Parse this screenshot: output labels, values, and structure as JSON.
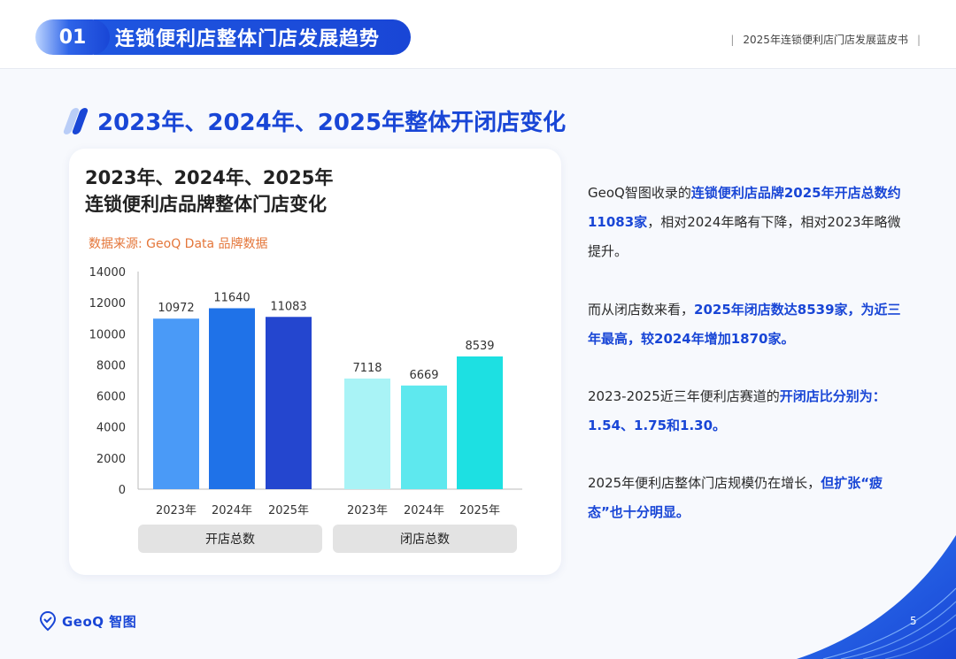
{
  "header": {
    "section_number": "01",
    "section_title": "连锁便利店整体门店发展趋势",
    "report_name": "2025年连锁便利店门店发展蓝皮书",
    "pipe": "|"
  },
  "heading": "2023年、2024年、2025年整体开闭店变化",
  "chart": {
    "title_line1": "2023年、2024年、2025年",
    "title_line2": "连锁便利店品牌整体门店变化",
    "source": "数据来源: GeoQ Data 品牌数据",
    "groups": [
      "开店总数",
      "闭店总数"
    ]
  },
  "chart_data": {
    "type": "bar",
    "categories": [
      "2023年",
      "2024年",
      "2025年",
      "2023年",
      "2024年",
      "2025年"
    ],
    "groups": [
      "开店总数",
      "闭店总数"
    ],
    "values": [
      10972,
      11640,
      11083,
      7118,
      6669,
      8539
    ],
    "colors": [
      "#4a9af7",
      "#1f72e8",
      "#2446cf",
      "#a9f3f6",
      "#5ee8ee",
      "#1de0e2"
    ],
    "ylim": [
      0,
      14000
    ],
    "yticks": [
      0,
      2000,
      4000,
      6000,
      8000,
      10000,
      12000,
      14000
    ],
    "grid": false
  },
  "paragraphs": {
    "p1_a": "GeoQ智图收录的",
    "p1_b": "连锁便利店品牌2025年开店总数约11083家",
    "p1_c": "，相对2024年略有下降，相对2023年略微提升。",
    "p2_a": "而从闭店数来看，",
    "p2_b": "2025年闭店数达8539家，为近三年最高，较2024年增加1870家。",
    "p3_a": "2023-2025近三年便利店赛道的",
    "p3_b": "开闭店比分别为：1.54、1.75和1.30。",
    "p4_a": "2025年便利店整体门店规模仍在增长，",
    "p4_b": "但扩张“疲态”也十分明显。"
  },
  "footer": {
    "logo_text": "GeoQ 智图",
    "page_number": "5"
  },
  "colors": {
    "brand_blue": "#1946d6",
    "source_orange": "#e4763a"
  }
}
